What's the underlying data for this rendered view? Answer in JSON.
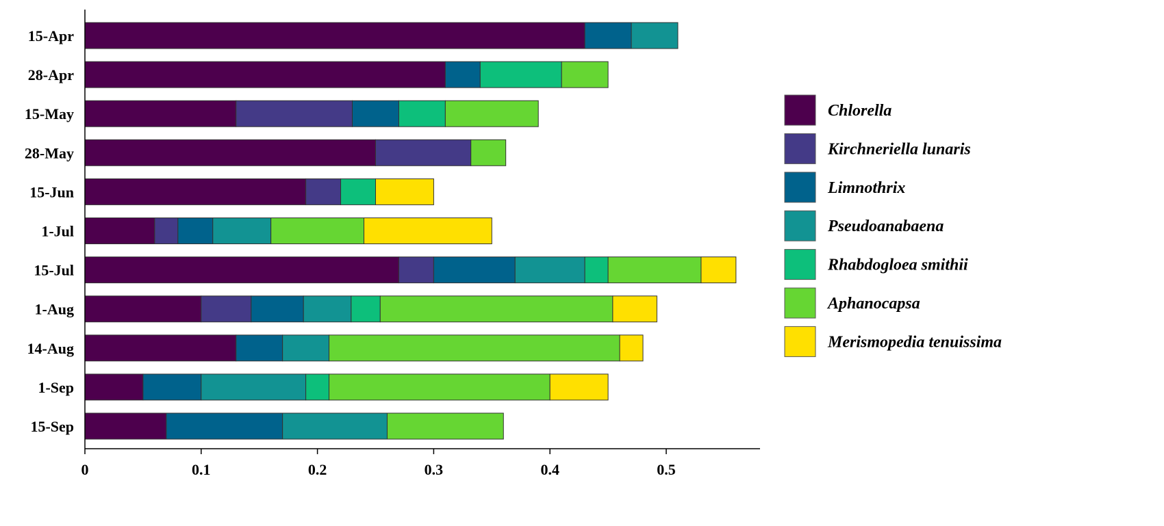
{
  "chart_data": {
    "type": "bar",
    "orientation": "horizontal",
    "stacked": true,
    "title": "",
    "xlabel": "",
    "ylabel": "",
    "xlim": [
      0,
      0.58
    ],
    "x_ticks": [
      "0",
      "0.1",
      "0.2",
      "0.3",
      "0.4",
      "0.5"
    ],
    "x_tick_values": [
      0,
      0.1,
      0.2,
      0.3,
      0.4,
      0.5
    ],
    "legend_position": "right",
    "categories": [
      "15-Apr",
      "28-Apr",
      "15-May",
      "28-May",
      "15-Jun",
      "1-Jul",
      "15-Jul",
      "1-Aug",
      "14-Aug",
      "1-Sep",
      "15-Sep"
    ],
    "series": [
      {
        "name": "Chlorella",
        "color": "#4d004d",
        "values": [
          0.43,
          0.31,
          0.13,
          0.25,
          0.19,
          0.06,
          0.27,
          0.1,
          0.13,
          0.05,
          0.07
        ]
      },
      {
        "name": "Kirchneriella lunaris",
        "color": "#443a87",
        "values": [
          0,
          0,
          0.1,
          0.082,
          0.03,
          0.02,
          0.03,
          0.043,
          0,
          0,
          0
        ]
      },
      {
        "name": "Limnothrix",
        "color": "#00628c",
        "values": [
          0.04,
          0.03,
          0.04,
          0,
          0,
          0.03,
          0.07,
          0.045,
          0.04,
          0.05,
          0.1
        ]
      },
      {
        "name": "Pseudoanabaena",
        "color": "#129393",
        "values": [
          0.04,
          0,
          0,
          0,
          0,
          0.05,
          0.06,
          0.041,
          0.04,
          0.09,
          0.09
        ]
      },
      {
        "name": "Rhabdogloea smithii",
        "color": "#0dbf7b",
        "values": [
          0,
          0.07,
          0.04,
          0,
          0.03,
          0,
          0.02,
          0.025,
          0,
          0.02,
          0
        ]
      },
      {
        "name": "Aphanocapsa",
        "color": "#66d633",
        "values": [
          0,
          0.04,
          0.08,
          0.03,
          0,
          0.08,
          0.08,
          0.2,
          0.25,
          0.19,
          0.1
        ]
      },
      {
        "name": "Merismopedia tenuissima",
        "color": "#ffe000",
        "values": [
          0,
          0,
          0,
          0,
          0.05,
          0.11,
          0.03,
          0.038,
          0.02,
          0.05,
          0
        ]
      }
    ]
  }
}
